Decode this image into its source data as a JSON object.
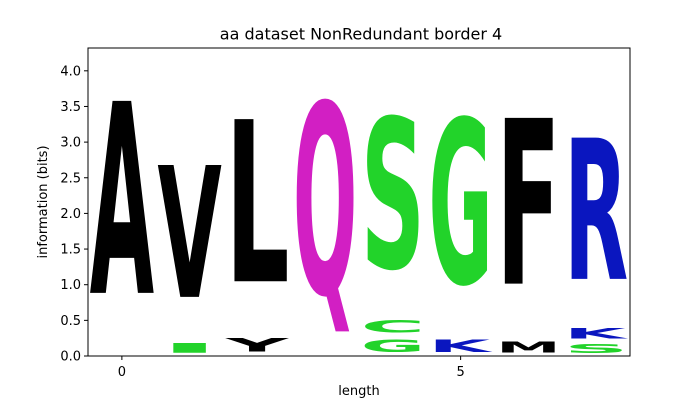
{
  "chart_data": {
    "type": "sequence-logo",
    "title": "aa dataset NonRedundant border 4",
    "xlabel": "length",
    "ylabel": "information (bits)",
    "xlim": [
      -0.5,
      7.5
    ],
    "ylim": [
      0,
      4.32
    ],
    "x_ticks": [
      0,
      5
    ],
    "y_ticks": [
      0.0,
      0.5,
      1.0,
      1.5,
      2.0,
      2.5,
      3.0,
      3.5,
      4.0
    ],
    "y_tick_labels": [
      "0.0",
      "0.5",
      "1.0",
      "1.5",
      "2.0",
      "2.5",
      "3.0",
      "3.5",
      "4.0"
    ],
    "colors": {
      "A": "#000000",
      "V": "#000000",
      "I": "#22d32a",
      "L": "#000000",
      "Y": "#000000",
      "Q": "#d21fc3",
      "S": "#22d32a",
      "C": "#22d32a",
      "G": "#22d32a",
      "K": "#0a16bf",
      "F": "#000000",
      "M": "#000000",
      "R": "#0a16bf"
    },
    "positions": [
      {
        "x": 0,
        "letters": [
          {
            "letter": "A",
            "bits": 4.32
          }
        ]
      },
      {
        "x": 1,
        "letters": [
          {
            "letter": "I",
            "bits": 0.22
          },
          {
            "letter": "V",
            "bits": 2.97
          }
        ]
      },
      {
        "x": 2,
        "letters": [
          {
            "letter": "Y",
            "bits": 0.3
          },
          {
            "letter": "L",
            "bits": 3.65
          }
        ]
      },
      {
        "x": 3,
        "letters": [
          {
            "letter": "Q",
            "bits": 4.3
          }
        ]
      },
      {
        "x": 4,
        "letters": [
          {
            "letter": "G",
            "bits": 0.27
          },
          {
            "letter": "C",
            "bits": 0.28
          },
          {
            "letter": "S",
            "bits": 3.38
          }
        ]
      },
      {
        "x": 5,
        "letters": [
          {
            "letter": "K",
            "bits": 0.27
          },
          {
            "letter": "G",
            "bits": 3.7
          }
        ]
      },
      {
        "x": 6,
        "letters": [
          {
            "letter": "M",
            "bits": 0.25
          },
          {
            "letter": "F",
            "bits": 3.73
          }
        ]
      },
      {
        "x": 7,
        "letters": [
          {
            "letter": "S",
            "bits": 0.2
          },
          {
            "letter": "K",
            "bits": 0.23
          },
          {
            "letter": "R",
            "bits": 3.18
          }
        ]
      }
    ]
  }
}
